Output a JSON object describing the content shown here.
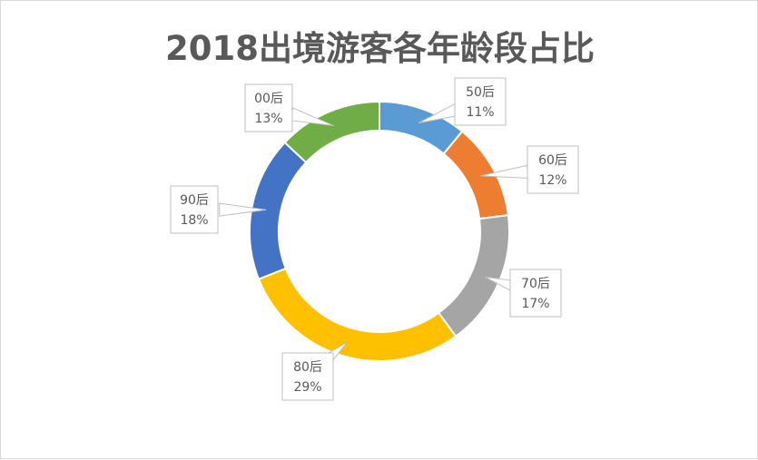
{
  "chart_data": {
    "type": "pie",
    "variant": "doughnut",
    "title": "2018出境游客各年龄段占比",
    "categories": [
      "50后",
      "60后",
      "70后",
      "80后",
      "90后",
      "00后"
    ],
    "values": [
      11,
      12,
      17,
      29,
      18,
      13
    ],
    "value_labels": [
      "11%",
      "12%",
      "17%",
      "29%",
      "18%",
      "13%"
    ],
    "unit": "%",
    "colors": [
      "#5B9BD5",
      "#ED7D31",
      "#A5A5A5",
      "#FFC000",
      "#4472C4",
      "#70AD47"
    ],
    "legend": "none",
    "start_angle": "12 o'clock, clockwise"
  }
}
